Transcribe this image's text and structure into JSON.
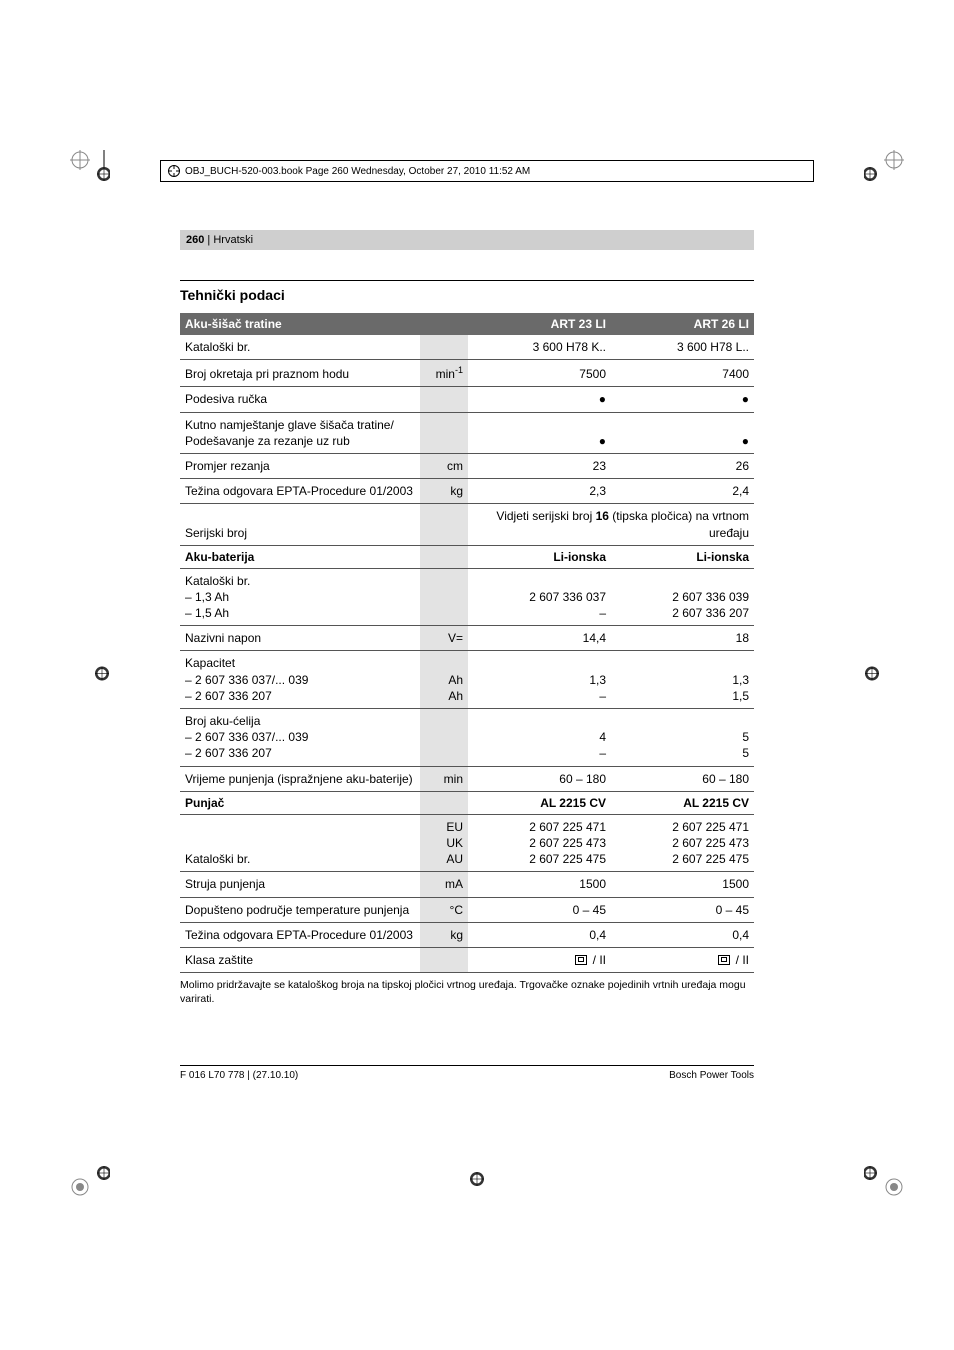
{
  "bookinfo": "OBJ_BUCH-520-003.book  Page 260  Wednesday, October 27, 2010  11:52 AM",
  "header": {
    "page": "260",
    "lang": "Hrvatski"
  },
  "section_title": "Tehnički podaci",
  "table": {
    "unit_bg": "#e3e3e3",
    "header_bg": "#6a6a6a",
    "header_fg": "#ffffff",
    "group1": {
      "title": "Aku-šišač tratine",
      "cols": [
        "ART 23 LI",
        "ART 26 LI"
      ],
      "rows": [
        {
          "label": "Kataloški br.",
          "unit": "",
          "v1": "3 600 H78 K..",
          "v2": "3 600 H78 L.."
        },
        {
          "label": "Broj okretaja pri praznom hodu",
          "unit": "min⁻¹",
          "v1": "7500",
          "v2": "7400"
        },
        {
          "label": "Podesiva ručka",
          "unit": "",
          "v1": "●",
          "v2": "●"
        },
        {
          "label": "Kutno namještanje glave šišača tratine/\nPodešavanje za rezanje uz rub",
          "unit": "",
          "v1": "●",
          "v2": "●"
        },
        {
          "label": "Promjer rezanja",
          "unit": "cm",
          "v1": "23",
          "v2": "26"
        },
        {
          "label": "Težina odgovara EPTA-Procedure 01/2003",
          "unit": "kg",
          "v1": "2,3",
          "v2": "2,4"
        },
        {
          "label": "Serijski broj",
          "unit": "",
          "merged": "Vidjeti serijski broj 16 (tipska pločica) na vrtnom uređaju",
          "bold_in_merged": "16"
        }
      ]
    },
    "group2": {
      "title": "Aku-baterija",
      "cols": [
        "Li-ionska",
        "Li-ionska"
      ],
      "rows": [
        {
          "label": "Kataloški br.\n– 1,3 Ah\n– 1,5 Ah",
          "unit": "",
          "v1": "2 607 336 037\n–",
          "v2": "2 607 336 039\n2 607 336 207"
        },
        {
          "label": "Nazivni napon",
          "unit": "V=",
          "v1": "14,4",
          "v2": "18"
        },
        {
          "label": "Kapacitet\n– 2 607 336 037/... 039\n– 2 607 336 207",
          "unit": "\nAh\nAh",
          "v1": "\n1,3\n–",
          "v2": "\n1,3\n1,5"
        },
        {
          "label": "Broj aku-ćelija\n– 2 607 336 037/... 039\n– 2 607 336 207",
          "unit": "",
          "v1": "\n4\n–",
          "v2": "\n5\n5"
        },
        {
          "label": "Vrijeme punjenja (ispražnjene aku-baterije)",
          "unit": "min",
          "v1": "60 – 180",
          "v2": "60 – 180"
        }
      ]
    },
    "group3": {
      "title": "Punjač",
      "cols": [
        "AL 2215 CV",
        "AL 2215 CV"
      ],
      "rows": [
        {
          "label": "Kataloški br.",
          "unit": "EU\nUK\nAU",
          "v1": "2 607 225 471\n2 607 225 473\n2 607 225 475",
          "v2": "2 607 225 471\n2 607 225 473\n2 607 225 475"
        },
        {
          "label": "Struja punjenja",
          "unit": "mA",
          "v1": "1500",
          "v2": "1500"
        },
        {
          "label": "Dopušteno područje temperature punjenja",
          "unit": "°C",
          "v1": "0 – 45",
          "v2": "0 – 45"
        },
        {
          "label": "Težina odgovara EPTA-Procedure 01/2003",
          "unit": "kg",
          "v1": "0,4",
          "v2": "0,4"
        },
        {
          "label": "Klasa zaštite",
          "unit": "",
          "v1": "CLASS_II",
          "v2": "CLASS_II"
        }
      ]
    }
  },
  "footnote": "Molimo pridržavajte se kataloškog broja na tipskoj pločici vrtnog uređaja. Trgovačke oznake pojedinih vrtnih uređaja mogu varirati.",
  "footer": {
    "left": "F 016 L70 778 | (27.10.10)",
    "right": "Bosch Power Tools"
  }
}
